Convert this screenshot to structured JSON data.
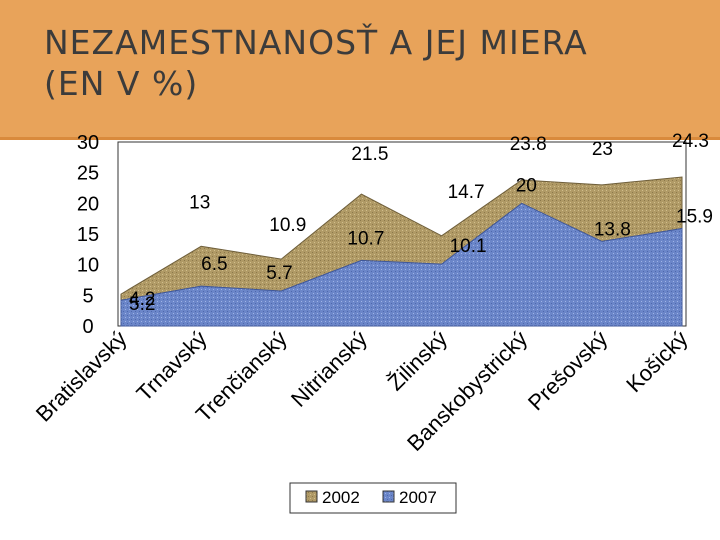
{
  "title": {
    "line1": "NEZAMESTNANOSŤ A JEJ MIERA",
    "line2": "(EN V %)"
  },
  "colors": {
    "band": "#e8a35a",
    "area2002": "#b09a66",
    "area2007": "#6b86c9"
  },
  "chart_data": {
    "type": "area",
    "title": "NEZAMESTNANOSŤ A JEJ MIERA (EN V %)",
    "xlabel": "",
    "ylabel": "",
    "ylim": [
      0,
      30
    ],
    "yticks": [
      "30",
      "25",
      "20",
      "15",
      "10",
      "5",
      "0"
    ],
    "categories": [
      "Bratislavský",
      "Trnavský",
      "Trenčianský",
      "Nitrianský",
      "Žilinský",
      "Banskobystrický",
      "Prešovský",
      "Košický"
    ],
    "series": [
      {
        "name": "2002",
        "values": [
          5.2,
          13,
          10.9,
          21.5,
          14.7,
          23.8,
          23,
          24.3
        ],
        "labels": [
          "5.2",
          "13",
          "10.9",
          "21.5",
          "14.7",
          "23.8",
          "23",
          "24.3"
        ]
      },
      {
        "name": "2007",
        "values": [
          4.2,
          6.5,
          5.7,
          10.7,
          10.1,
          20,
          13.8,
          15.9
        ],
        "labels": [
          "4.2",
          "6.5",
          "5.7",
          "10.7",
          "10.1",
          "20",
          "13.8",
          "15.9"
        ]
      }
    ],
    "legend": [
      "2002",
      "2007"
    ],
    "legend_position": "bottom"
  }
}
